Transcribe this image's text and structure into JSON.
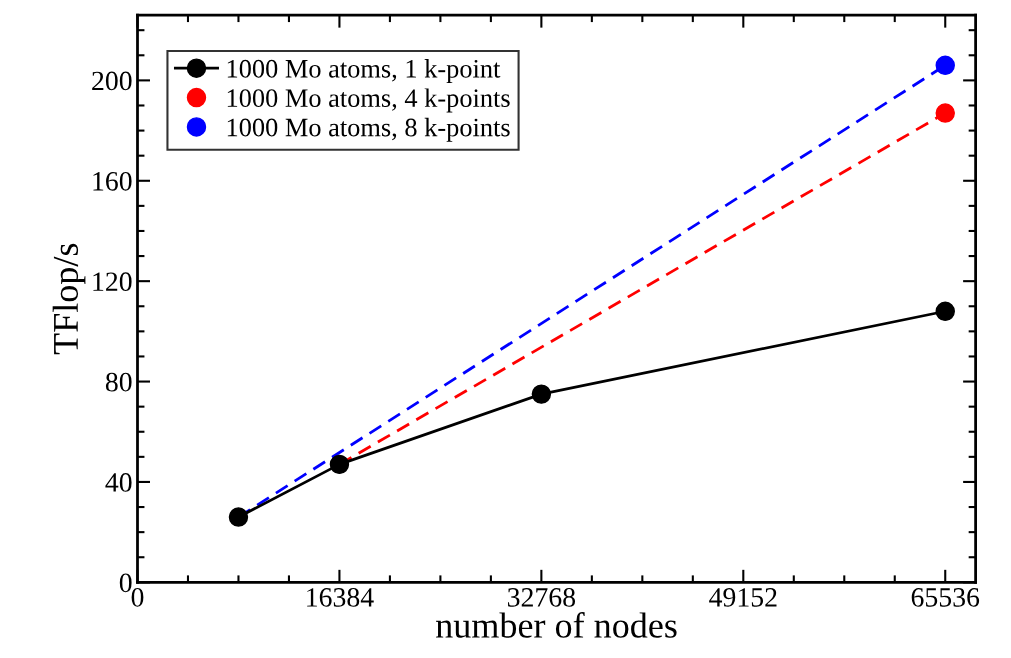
{
  "chart_data": {
    "type": "line",
    "xlabel": "number of nodes",
    "ylabel": "TFlop/s",
    "xlim": [
      0,
      68000
    ],
    "ylim": [
      0,
      226
    ],
    "xticks": [
      0,
      16384,
      32768,
      49152,
      65536
    ],
    "yticks": [
      0,
      40,
      80,
      120,
      160,
      200
    ],
    "grid": false,
    "legend": "top left",
    "marker": "circle",
    "series": [
      {
        "name": "1000 Mo atoms, 1 k-point",
        "color": "#000000",
        "x": [
          8192,
          16384,
          32768,
          65536
        ],
        "values": [
          26,
          47,
          75,
          108
        ],
        "line_style": "solid"
      },
      {
        "name": "1000 Mo atoms, 4 k-points",
        "color": "#ff0000",
        "x": [
          16384,
          65536
        ],
        "values": [
          47,
          187
        ],
        "line_style": "dashed"
      },
      {
        "name": "1000 Mo atoms, 8 k-points",
        "color": "#0000ff",
        "x": [
          8192,
          65536
        ],
        "values": [
          26,
          206
        ],
        "line_style": "dashed"
      }
    ]
  }
}
